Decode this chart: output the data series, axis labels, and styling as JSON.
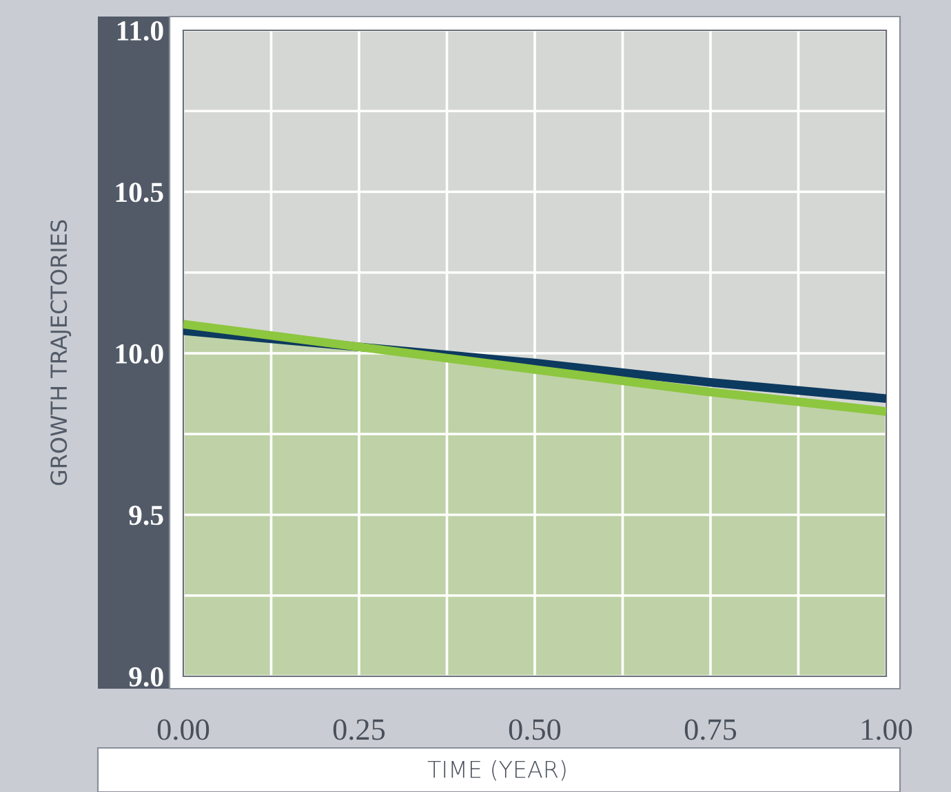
{
  "chart_data": {
    "type": "line",
    "xlabel": "TIME (YEAR)",
    "ylabel": "GROWTH TRAJECTORIES",
    "series": [
      {
        "type": "area",
        "color": "#8dc63f",
        "x": [
          0,
          0.25,
          0.5,
          0.75,
          1.0
        ],
        "values": [
          10.09,
          10.02,
          9.95,
          9.88,
          9.82
        ]
      },
      {
        "color": "#0d3a5f",
        "x": [
          0,
          0.25,
          0.5,
          0.75,
          1.0
        ],
        "values": [
          10.07,
          10.02,
          9.97,
          9.91,
          9.86
        ]
      }
    ],
    "xlim": [
      0,
      1
    ],
    "ylim": [
      9,
      11
    ],
    "xticks": [
      {
        "value": 0,
        "label": "0.00"
      },
      {
        "value": 0.125,
        "label": null
      },
      {
        "value": 0.25,
        "label": "0.25"
      },
      {
        "value": 0.375,
        "label": null
      },
      {
        "value": 0.5,
        "label": "0.50"
      },
      {
        "value": 0.625,
        "label": null
      },
      {
        "value": 0.75,
        "label": "0.75"
      },
      {
        "value": 0.875,
        "label": null
      },
      {
        "value": 1,
        "label": "1.00"
      }
    ],
    "yticks": [
      {
        "value": 9,
        "label": "9.0"
      },
      {
        "value": 9.25,
        "label": null
      },
      {
        "value": 9.5,
        "label": "9.5"
      },
      {
        "value": 9.75,
        "label": null
      },
      {
        "value": 10,
        "label": "10.0"
      },
      {
        "value": 10.25,
        "label": null
      },
      {
        "value": 10.5,
        "label": "10.5"
      },
      {
        "value": 10.75,
        "label": null
      },
      {
        "value": 11,
        "label": "11.0"
      }
    ],
    "grid": true,
    "legend": false
  }
}
